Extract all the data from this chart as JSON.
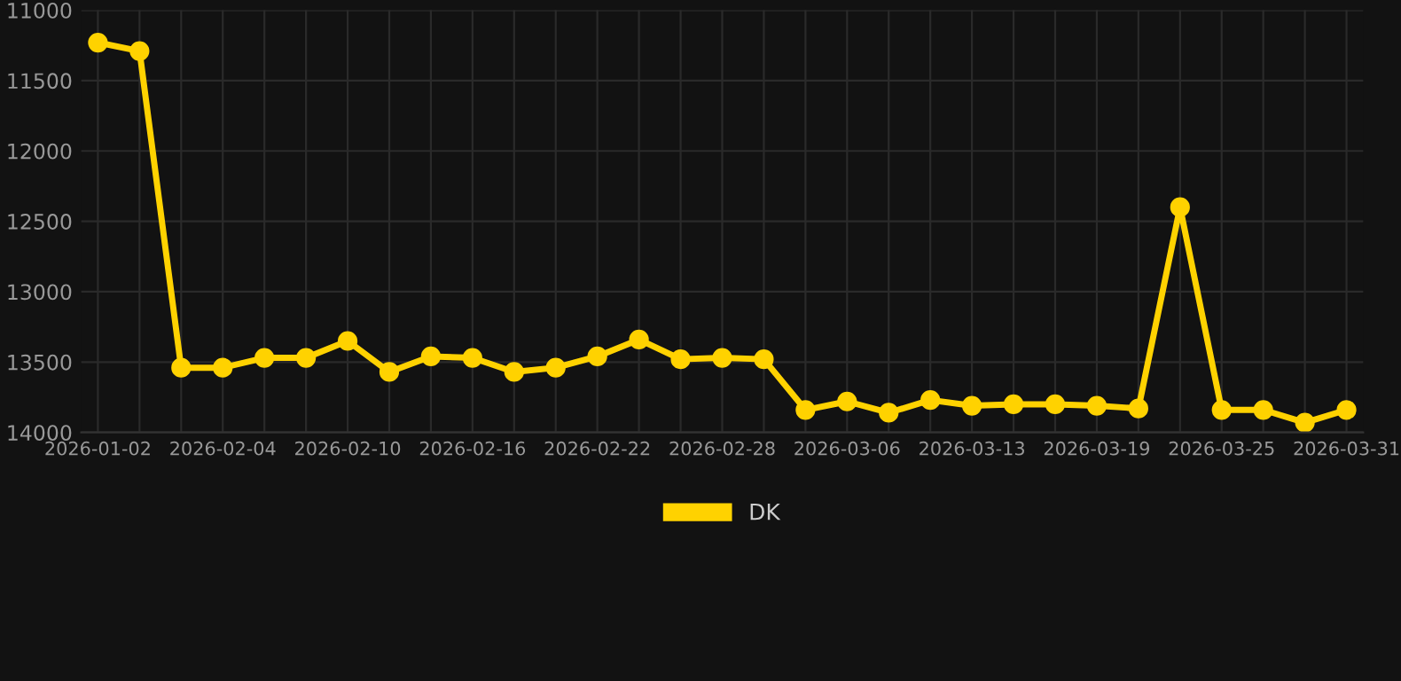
{
  "chart_data": {
    "type": "line",
    "categories": [
      "2026-01-02",
      null,
      null,
      "2026-02-04",
      null,
      null,
      "2026-02-10",
      null,
      null,
      "2026-02-16",
      null,
      null,
      "2026-02-22",
      null,
      null,
      "2026-02-28",
      null,
      null,
      "2026-03-06",
      null,
      null,
      "2026-03-13",
      null,
      null,
      "2026-03-19",
      null,
      null,
      "2026-03-25",
      null,
      null,
      "2026-03-31"
    ],
    "series": [
      {
        "name": "DK",
        "color": "#ffd200",
        "values": [
          11230,
          11290,
          13540,
          13540,
          13470,
          13470,
          13350,
          13570,
          13460,
          13470,
          13570,
          13540,
          13460,
          13340,
          13480,
          13470,
          13480,
          13840,
          13780,
          13860,
          13770,
          13810,
          13800,
          13800,
          13810,
          13830,
          12400,
          13840,
          13840,
          13930,
          13840
        ]
      }
    ],
    "ylim": [
      14000,
      11000
    ],
    "yticks": [
      11000,
      11500,
      12000,
      12500,
      13000,
      13500,
      14000
    ],
    "grid": true,
    "legend": "bottom",
    "marker": "circle",
    "line_style": "solid"
  }
}
